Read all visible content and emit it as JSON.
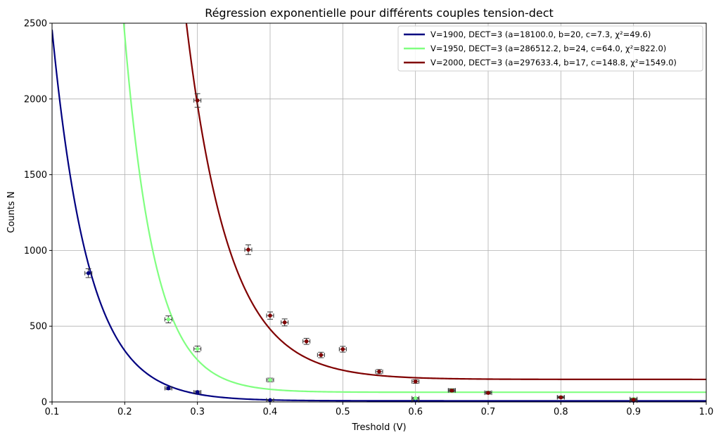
{
  "chart_data": {
    "type": "scatter",
    "title": "Régression exponentielle pour différents couples tension-dect",
    "xlabel": "Treshold (V)",
    "ylabel": "Counts N",
    "xlim": [
      0.1,
      1.0
    ],
    "ylim": [
      0,
      2500
    ],
    "x_ticks": [
      "0.1",
      "0.2",
      "0.3",
      "0.4",
      "0.5",
      "0.6",
      "0.7",
      "0.8",
      "0.9",
      "1.0"
    ],
    "y_ticks": [
      "0",
      "500",
      "1000",
      "1500",
      "2000",
      "2500"
    ],
    "grid": true,
    "legend_position": "top-right",
    "series": [
      {
        "name": "V=1900, DECT=3 (a=18100.0, b=20, c=7.3, χ²=49.6)",
        "color": "#000080",
        "fit": {
          "a": 18100.0,
          "b": 20,
          "c": 7.3
        },
        "points": [
          {
            "x": 0.15,
            "y": 850,
            "yerr": 29
          },
          {
            "x": 0.26,
            "y": 90,
            "yerr": 9
          },
          {
            "x": 0.3,
            "y": 65,
            "yerr": 8
          },
          {
            "x": 0.4,
            "y": 12,
            "yerr": 4
          },
          {
            "x": 0.6,
            "y": 10,
            "yerr": 3
          },
          {
            "x": 0.9,
            "y": 8,
            "yerr": 3
          }
        ]
      },
      {
        "name": "V=1950, DECT=3 (a=286512.2, b=24, c=64.0, χ²=822.0)",
        "color": "#80ff80",
        "fit": {
          "a": 286512.2,
          "b": 24,
          "c": 64.0
        },
        "points": [
          {
            "x": 0.26,
            "y": 545,
            "yerr": 23
          },
          {
            "x": 0.3,
            "y": 350,
            "yerr": 19
          },
          {
            "x": 0.4,
            "y": 145,
            "yerr": 12
          },
          {
            "x": 0.6,
            "y": 25,
            "yerr": 5
          },
          {
            "x": 0.65,
            "y": 78,
            "yerr": 9
          },
          {
            "x": 0.7,
            "y": 62,
            "yerr": 8
          },
          {
            "x": 0.8,
            "y": 32,
            "yerr": 6
          },
          {
            "x": 0.9,
            "y": 20,
            "yerr": 5
          }
        ]
      },
      {
        "name": "V=2000, DECT=3 (a=297633.4, b=17, c=148.8, χ²=1549.0)",
        "color": "#800000",
        "fit": {
          "a": 297633.4,
          "b": 17,
          "c": 148.8
        },
        "points": [
          {
            "x": 0.3,
            "y": 1990,
            "yerr": 45
          },
          {
            "x": 0.37,
            "y": 1005,
            "yerr": 32
          },
          {
            "x": 0.4,
            "y": 570,
            "yerr": 24
          },
          {
            "x": 0.42,
            "y": 525,
            "yerr": 23
          },
          {
            "x": 0.45,
            "y": 400,
            "yerr": 20
          },
          {
            "x": 0.47,
            "y": 310,
            "yerr": 18
          },
          {
            "x": 0.5,
            "y": 348,
            "yerr": 19
          },
          {
            "x": 0.55,
            "y": 200,
            "yerr": 14
          },
          {
            "x": 0.6,
            "y": 135,
            "yerr": 12
          },
          {
            "x": 0.65,
            "y": 75,
            "yerr": 9
          },
          {
            "x": 0.7,
            "y": 60,
            "yerr": 8
          },
          {
            "x": 0.8,
            "y": 30,
            "yerr": 6
          },
          {
            "x": 0.9,
            "y": 15,
            "yerr": 4
          }
        ]
      }
    ]
  }
}
